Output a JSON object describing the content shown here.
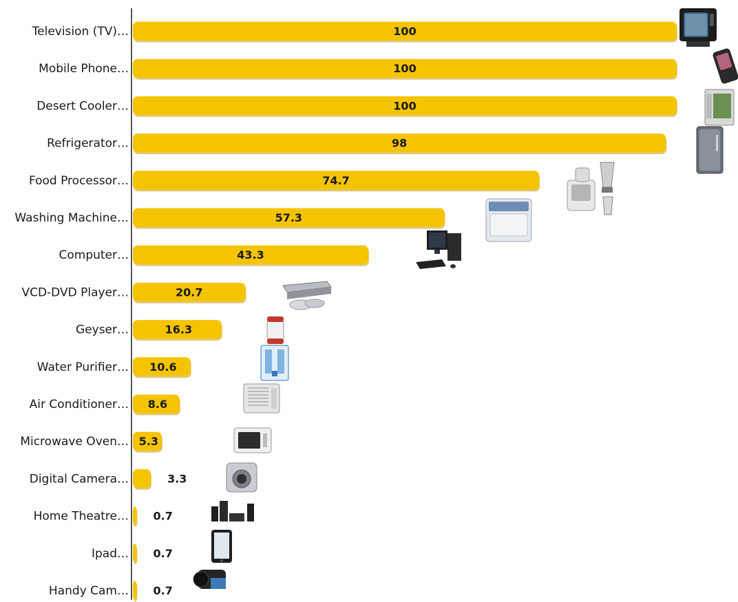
{
  "chart_data": {
    "type": "bar",
    "orientation": "horizontal",
    "title": "",
    "xlabel": "",
    "ylabel": "",
    "xlim": [
      0,
      100
    ],
    "grid": false,
    "legend": "none",
    "bar_color": "#F5C400",
    "bar_shadow_color": "#C99A00",
    "axis_color": "#555555",
    "categories": [
      "Television (TV)…",
      "Mobile Phone…",
      "Desert Cooler…",
      "Refrigerator…",
      "Food Processor…",
      "Washing Machine…",
      "Computer…",
      "VCD-DVD Player…",
      "Geyser…",
      "Water Purifier…",
      "Air Conditioner…",
      "Microwave Oven…",
      "Digital Camera…",
      "Home Theatre…",
      "Ipad…",
      "Handy Cam…"
    ],
    "values": [
      100,
      100,
      100,
      98,
      74.7,
      57.3,
      43.3,
      20.7,
      16.3,
      10.6,
      8.6,
      5.3,
      3.3,
      0.7,
      0.7,
      0.7
    ],
    "labels": [
      "100",
      "100",
      "100",
      "98",
      "74.7",
      "57.3",
      "43.3",
      "20.7",
      "16.3",
      "10.6",
      "8.6",
      "5.3",
      "3.3",
      "0.7",
      "0.7",
      "0.7"
    ],
    "icons": [
      "television-icon",
      "mobile-phone-icon",
      "desert-cooler-icon",
      "refrigerator-icon",
      "food-processor-icon",
      "washing-machine-icon",
      "computer-icon",
      "dvd-player-icon",
      "geyser-icon",
      "water-purifier-icon",
      "air-conditioner-icon",
      "microwave-oven-icon",
      "digital-camera-icon",
      "home-theatre-icon",
      "ipad-icon",
      "handy-cam-icon"
    ]
  }
}
